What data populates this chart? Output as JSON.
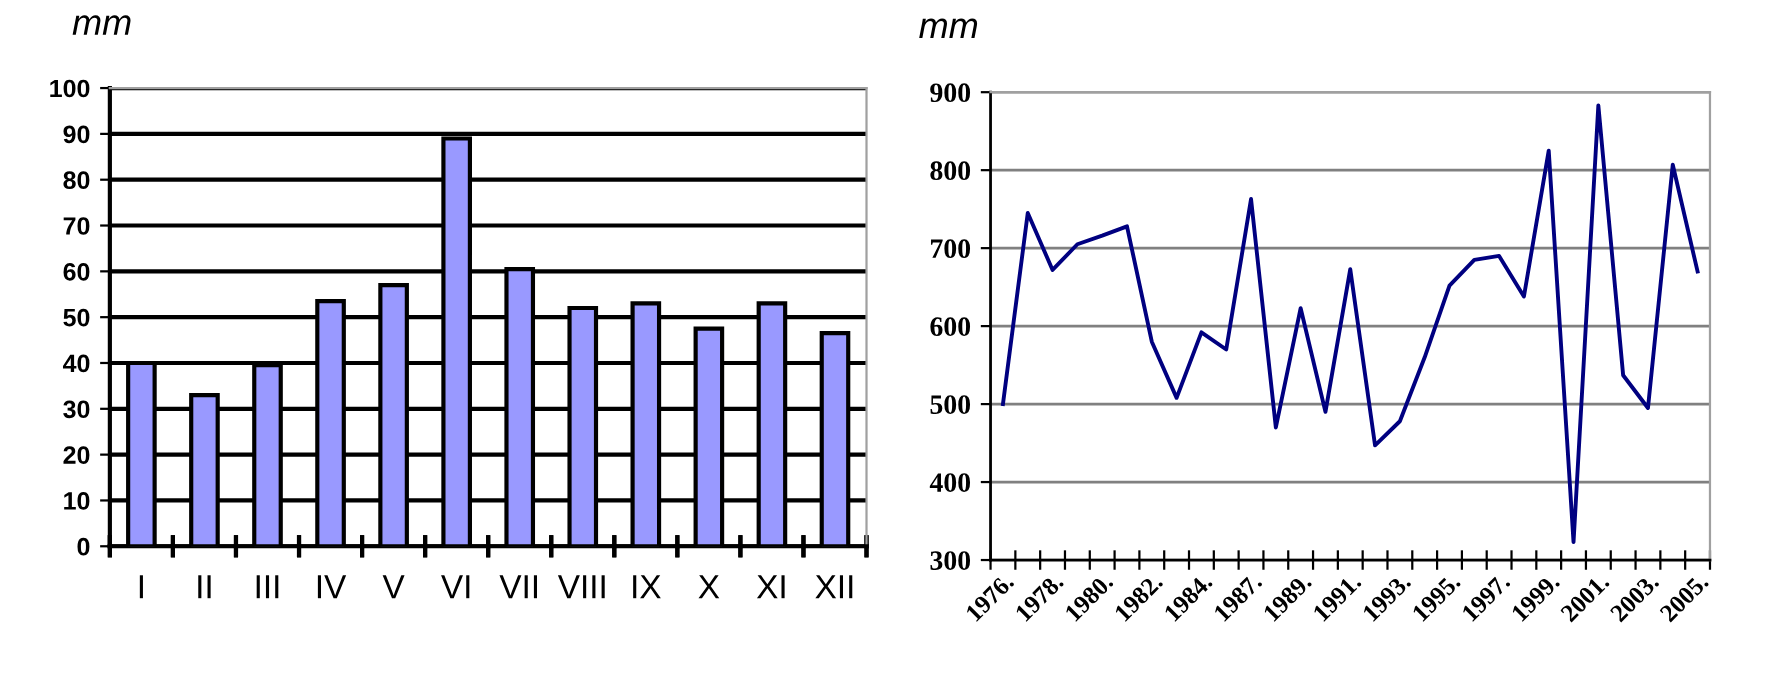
{
  "chart_data": [
    {
      "type": "bar",
      "ylabel": "mm",
      "categories": [
        "I",
        "II",
        "III",
        "IV",
        "V",
        "VI",
        "VII",
        "VIII",
        "IX",
        "X",
        "XI",
        "XII"
      ],
      "values": [
        40,
        33,
        39.5,
        53.5,
        57,
        89,
        60.5,
        52,
        53,
        47.5,
        53,
        46.5
      ],
      "color": "#9999ff",
      "ylim": [
        0,
        100
      ],
      "yticks": [
        0,
        10,
        20,
        30,
        40,
        50,
        60,
        70,
        80,
        90,
        100
      ],
      "grid": "y"
    },
    {
      "type": "line",
      "ylabel": "mm",
      "categories": [
        "1976.",
        null,
        "1978.",
        null,
        "1980.",
        null,
        "1982.",
        null,
        "1984.",
        null,
        "1987.",
        null,
        "1989.",
        null,
        "1991.",
        null,
        "1993.",
        null,
        "1995.",
        null,
        "1997.",
        null,
        "1999.",
        null,
        "2001.",
        null,
        "2003.",
        null,
        "2005."
      ],
      "values": [
        500,
        745,
        672,
        705,
        716,
        728,
        580,
        508,
        592,
        570,
        763,
        470,
        623,
        490,
        673,
        447,
        478,
        560,
        652,
        685,
        690,
        638,
        825,
        323,
        883,
        537,
        495,
        807,
        670
      ],
      "color": "#000080",
      "ylim": [
        300,
        900
      ],
      "yticks": [
        300,
        400,
        500,
        600,
        700,
        800,
        900
      ],
      "grid": "y",
      "marker": "none",
      "line_style": "solid"
    }
  ]
}
